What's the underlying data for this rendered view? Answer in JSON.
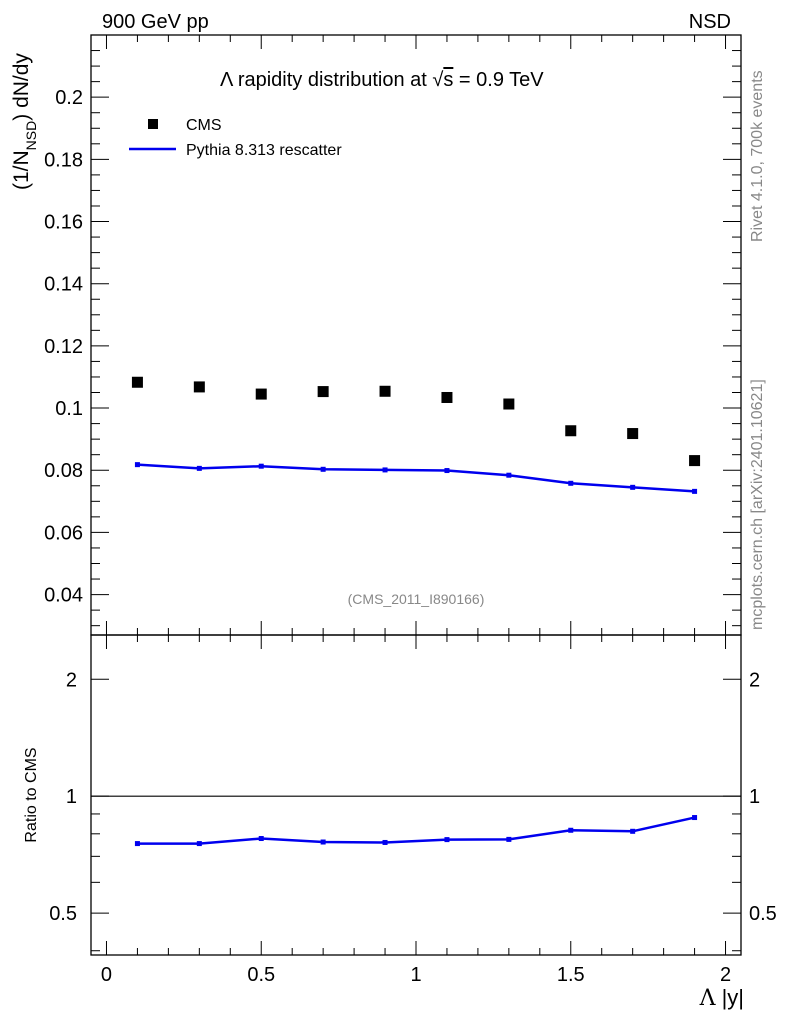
{
  "header": {
    "left_label": "900 GeV pp",
    "right_label": "NSD",
    "side_text_top": "Rivet 4.1.0,  700k events",
    "side_text_bottom": "mcplots.cern.ch [arXiv:2401.10621]",
    "analysis_id": "(CMS_2011_I890166)"
  },
  "chart_data": [
    {
      "type": "scatter",
      "title_prefix": "Λ rapidity distribution at ",
      "title_sqrt": "√",
      "title_s": "s",
      "title_suffix": " = 0.9 TeV",
      "ylabel_main": "(1/N",
      "ylabel_sub": "NSD",
      "ylabel_tail": ") dN/dy",
      "xlim": [
        -0.05,
        2.05
      ],
      "ylim": [
        0.027,
        0.22
      ],
      "ytick_values": [
        0.04,
        0.06,
        0.08,
        0.1,
        0.12,
        0.14,
        0.16,
        0.18,
        0.2
      ],
      "ytick_labels": [
        "0.04",
        "0.06",
        "0.08",
        "0.1",
        "0.12",
        "0.14",
        "0.16",
        "0.18",
        "0.2"
      ],
      "x": [
        0.1,
        0.3,
        0.5,
        0.7,
        0.9,
        1.1,
        1.3,
        1.5,
        1.7,
        1.9
      ],
      "series": [
        {
          "name": "CMS",
          "style": "markers",
          "color": "#000000",
          "values": [
            0.1083,
            0.1068,
            0.1045,
            0.1053,
            0.1054,
            0.1034,
            0.1013,
            0.0927,
            0.0918,
            0.0831
          ]
        },
        {
          "name": "Pythia 8.313 rescatter",
          "style": "line",
          "color": "#0000ee",
          "values": [
            0.0818,
            0.0806,
            0.0813,
            0.0803,
            0.0801,
            0.0799,
            0.0784,
            0.0758,
            0.0745,
            0.0732
          ]
        }
      ],
      "legend": [
        {
          "label": "CMS"
        },
        {
          "label": "Pythia 8.313 rescatter"
        }
      ]
    },
    {
      "type": "line",
      "ylabel": "Ratio to CMS",
      "xlabel_sym": "Λ",
      "xlabel_tail": " |y|",
      "scale": "log",
      "xlim": [
        -0.05,
        2.05
      ],
      "ylim": [
        0.39,
        2.6
      ],
      "reference_line": 1,
      "ytick_values": [
        0.5,
        1,
        2
      ],
      "ytick_labels": [
        "0.5",
        "1",
        "2"
      ],
      "xtick_values": [
        0,
        0.5,
        1,
        1.5,
        2
      ],
      "xtick_labels": [
        "0",
        "0.5",
        "1",
        "1.5",
        "2"
      ],
      "x": [
        0.1,
        0.3,
        0.5,
        0.7,
        0.9,
        1.1,
        1.3,
        1.5,
        1.7,
        1.9
      ],
      "series": [
        {
          "name": "Pythia 8.313 rescatter / CMS",
          "color": "#0000ee",
          "values": [
            0.755,
            0.755,
            0.778,
            0.762,
            0.76,
            0.773,
            0.774,
            0.817,
            0.812,
            0.881
          ]
        }
      ]
    }
  ]
}
